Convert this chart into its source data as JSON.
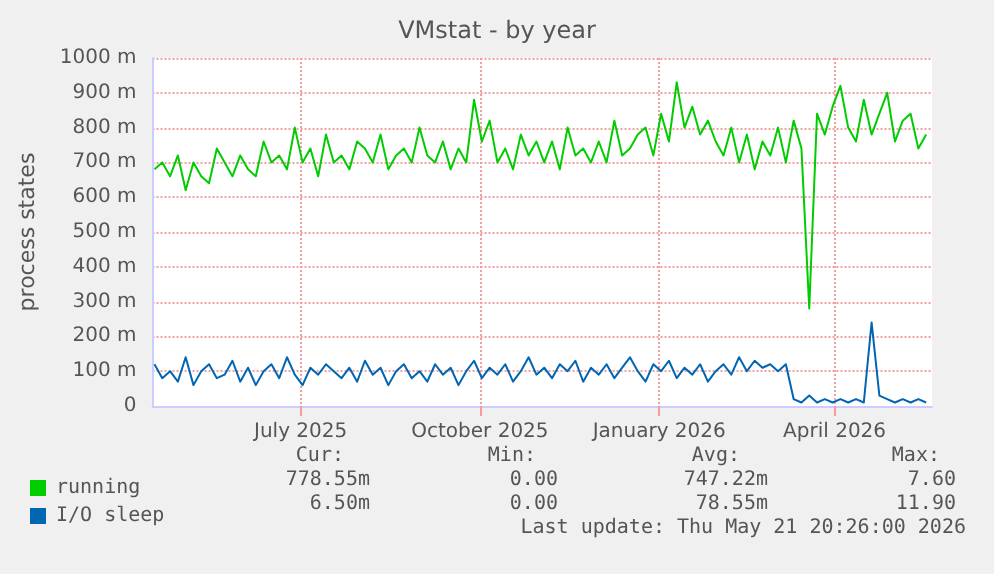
{
  "chart_data": {
    "type": "line",
    "title": "VMstat - by year",
    "ylabel": "process states",
    "x": [
      "2025-04-17",
      "2025-04-21",
      "2025-04-25",
      "2025-04-29",
      "2025-05-03",
      "2025-05-07",
      "2025-05-11",
      "2025-05-15",
      "2025-05-19",
      "2025-05-23",
      "2025-05-27",
      "2025-05-31",
      "2025-06-04",
      "2025-06-08",
      "2025-06-12",
      "2025-06-16",
      "2025-06-20",
      "2025-06-24",
      "2025-06-28",
      "2025-07-02",
      "2025-07-06",
      "2025-07-10",
      "2025-07-14",
      "2025-07-18",
      "2025-07-22",
      "2025-07-26",
      "2025-07-30",
      "2025-08-03",
      "2025-08-07",
      "2025-08-11",
      "2025-08-15",
      "2025-08-19",
      "2025-08-23",
      "2025-08-27",
      "2025-08-31",
      "2025-09-04",
      "2025-09-08",
      "2025-09-12",
      "2025-09-16",
      "2025-09-20",
      "2025-09-24",
      "2025-09-28",
      "2025-10-02",
      "2025-10-06",
      "2025-10-10",
      "2025-10-14",
      "2025-10-18",
      "2025-10-22",
      "2025-10-26",
      "2025-10-30",
      "2025-11-03",
      "2025-11-07",
      "2025-11-11",
      "2025-11-15",
      "2025-11-19",
      "2025-11-23",
      "2025-11-27",
      "2025-12-01",
      "2025-12-05",
      "2025-12-09",
      "2025-12-13",
      "2025-12-17",
      "2025-12-21",
      "2025-12-25",
      "2025-12-29",
      "2026-01-02",
      "2026-01-06",
      "2026-01-10",
      "2026-01-14",
      "2026-01-18",
      "2026-01-22",
      "2026-01-26",
      "2026-01-30",
      "2026-02-03",
      "2026-02-07",
      "2026-02-11",
      "2026-02-15",
      "2026-02-19",
      "2026-02-23",
      "2026-02-27",
      "2026-03-03",
      "2026-03-07",
      "2026-03-11",
      "2026-03-15",
      "2026-03-19",
      "2026-03-23",
      "2026-03-27",
      "2026-03-31",
      "2026-04-04",
      "2026-04-08",
      "2026-04-12",
      "2026-04-16",
      "2026-04-20",
      "2026-04-24",
      "2026-04-28",
      "2026-05-02",
      "2026-05-06",
      "2026-05-10",
      "2026-05-14",
      "2026-05-18"
    ],
    "series": [
      {
        "name": "running",
        "color": "#00cc00",
        "values": [
          680,
          700,
          660,
          720,
          620,
          700,
          660,
          640,
          740,
          700,
          660,
          720,
          680,
          660,
          760,
          700,
          720,
          680,
          800,
          700,
          740,
          660,
          780,
          700,
          720,
          680,
          760,
          740,
          700,
          780,
          680,
          720,
          740,
          700,
          800,
          720,
          700,
          760,
          680,
          740,
          700,
          880,
          760,
          820,
          700,
          740,
          680,
          780,
          720,
          760,
          700,
          760,
          680,
          800,
          720,
          740,
          700,
          760,
          700,
          820,
          720,
          740,
          780,
          800,
          720,
          840,
          760,
          930,
          800,
          860,
          780,
          820,
          760,
          720,
          800,
          700,
          780,
          680,
          760,
          720,
          800,
          700,
          820,
          740,
          280,
          840,
          780,
          860,
          920,
          800,
          760,
          880,
          780,
          840,
          900,
          760,
          820,
          840,
          740,
          780
        ]
      },
      {
        "name": "I/O sleep",
        "color": "#0066b3",
        "values": [
          120,
          80,
          100,
          70,
          140,
          60,
          100,
          120,
          80,
          90,
          130,
          70,
          110,
          60,
          100,
          120,
          80,
          140,
          90,
          60,
          110,
          90,
          120,
          100,
          80,
          110,
          70,
          130,
          90,
          110,
          60,
          100,
          120,
          80,
          100,
          70,
          120,
          90,
          110,
          60,
          100,
          130,
          80,
          110,
          90,
          120,
          70,
          100,
          140,
          90,
          110,
          80,
          120,
          100,
          130,
          70,
          110,
          90,
          120,
          80,
          110,
          140,
          100,
          70,
          120,
          100,
          130,
          80,
          110,
          90,
          120,
          70,
          100,
          120,
          90,
          140,
          100,
          130,
          110,
          120,
          100,
          120,
          20,
          10,
          30,
          10,
          20,
          10,
          20,
          10,
          20,
          10,
          240,
          30,
          20,
          10,
          20,
          10,
          20,
          10
        ]
      }
    ],
    "xlim": [
      "2025-04-16",
      "2026-05-21"
    ],
    "xticks": [
      {
        "value": "2025-07-01",
        "label": "July 2025"
      },
      {
        "value": "2025-10-01",
        "label": "October 2025"
      },
      {
        "value": "2026-01-01",
        "label": "January 2026"
      },
      {
        "value": "2026-04-01",
        "label": "April 2026"
      }
    ],
    "ylim": [
      0,
      1000
    ],
    "yticks": [
      0,
      {
        "value": 100,
        "label": "100 m"
      },
      {
        "value": 200,
        "label": "200 m"
      },
      {
        "value": 300,
        "label": "300 m"
      },
      {
        "value": 400,
        "label": "400 m"
      },
      {
        "value": 500,
        "label": "500 m"
      },
      {
        "value": 600,
        "label": "600 m"
      },
      {
        "value": 700,
        "label": "700 m"
      },
      {
        "value": 800,
        "label": "800 m"
      },
      {
        "value": 900,
        "label": "900 m"
      },
      {
        "value": 1000,
        "label": "1000 m"
      }
    ],
    "grid": true,
    "legend": "bottom left",
    "marker": "none",
    "annotations": [
      "Cur:",
      "Min:",
      "Avg:",
      "Max:",
      "778.55m",
      "0.00",
      "747.22m",
      "7.60",
      "6.50m",
      "0.00",
      "78.55m",
      "11.90",
      "Last update: Thu May 21 20:26:00 2026"
    ]
  }
}
